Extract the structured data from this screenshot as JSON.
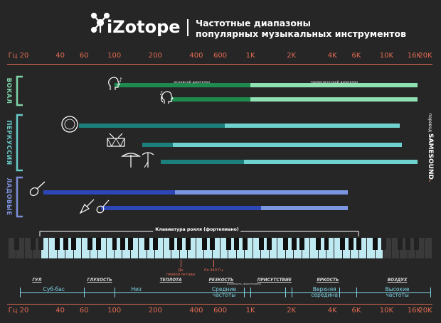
{
  "header": {
    "logo": "iZotope",
    "title_line1": "Частотные диапазоны",
    "title_line2": "популярных музыкальных инструментов"
  },
  "axis": {
    "unit_label": "Гц 20",
    "ticks": [
      "40",
      "60",
      "100",
      "200",
      "400",
      "600",
      "1K",
      "2K",
      "4K",
      "6K",
      "10K",
      "16K",
      "20K"
    ]
  },
  "groups": [
    {
      "label": "ВОКАЛ",
      "color": "#7fd3a8"
    },
    {
      "label": "ПЕРКУССИЯ",
      "color": "#67c9c8"
    },
    {
      "label": "ЛАДОВЫЕ",
      "color": "#7b8fd8"
    }
  ],
  "bar_labels": {
    "fundamental": "основной диапазон",
    "harmonic": "гармонический диапазон"
  },
  "instruments": [
    {
      "group": "vocal",
      "icon": "male-voice-icon",
      "fund_start_hz": 100,
      "fund_end_hz": 1000,
      "harm_end_hz": 17000,
      "fund_color": "#1e8a4e",
      "harm_color": "#8fe0b2"
    },
    {
      "group": "vocal",
      "icon": "female-voice-icon",
      "fund_start_hz": 260,
      "fund_end_hz": 1000,
      "harm_end_hz": 17000,
      "fund_color": "#1e8a4e",
      "harm_color": "#8fe0b2"
    },
    {
      "group": "percussion",
      "icon": "kick-drum-icon",
      "fund_start_hz": 55,
      "fund_end_hz": 650,
      "harm_end_hz": 12500,
      "fund_color": "#1d7f7c",
      "harm_color": "#6fd2cf"
    },
    {
      "group": "percussion",
      "icon": "snare-drum-icon",
      "fund_start_hz": 160,
      "fund_end_hz": 270,
      "harm_end_hz": 13000,
      "fund_color": "#1d7f7c",
      "harm_color": "#6fd2cf"
    },
    {
      "group": "percussion",
      "icon": "cymbal-icon",
      "fund_start_hz": 220,
      "fund_end_hz": 900,
      "harm_end_hz": 17000,
      "fund_color": "#1d7f7c",
      "harm_color": "#6fd2cf"
    },
    {
      "group": "strings",
      "icon": "guitar-icon",
      "fund_start_hz": 30,
      "fund_end_hz": 280,
      "harm_end_hz": 5200,
      "fund_color": "#2e47b8",
      "harm_color": "#7b95e0"
    },
    {
      "group": "strings",
      "icon": "electric-guitar-icon",
      "fund_start_hz": 80,
      "fund_end_hz": 1200,
      "harm_end_hz": 5200,
      "fund_color": "#2e47b8",
      "harm_color": "#7b95e0"
    }
  ],
  "credit": {
    "prefix": "перевод",
    "name": "SAMESOUND"
  },
  "piano": {
    "label": "Клавиатура рояля (фортепиано)",
    "note_c4": "До\nпервой октавы",
    "note_a4": "Ля 440 Гц"
  },
  "sections": [
    {
      "head": "ГУЛ",
      "name": "Суб-бас",
      "head_hz": 27,
      "name_hz": 36
    },
    {
      "head": "ГЛУХОСТЬ",
      "name": "",
      "head_hz": 78,
      "name_hz": 0
    },
    {
      "head": "ТЕПЛОТА",
      "name": "Низ",
      "head_hz": 260,
      "name_hz": 145
    },
    {
      "head": "РЕЗКОСТЬ",
      "name": "Средние\nчастоты",
      "head_hz": 610,
      "name_hz": 640
    },
    {
      "head": "ПРИСУТСТВИЕ",
      "name": "",
      "head_hz": 1500,
      "name_hz": 0
    },
    {
      "head": "ЯРКОСТЬ",
      "name": "Верхняя\nсередина",
      "head_hz": 3700,
      "name_hz": 3500
    },
    {
      "head": "ВОЗДУХ",
      "name": "Высокие\nчастоты",
      "head_hz": 12000,
      "name_hz": 12000
    }
  ],
  "section_sub": "(громкость, фортепиано)",
  "colors": {
    "background": "#262626",
    "axis": "#e06a52",
    "accent_cyan": "#7fd3e6"
  }
}
